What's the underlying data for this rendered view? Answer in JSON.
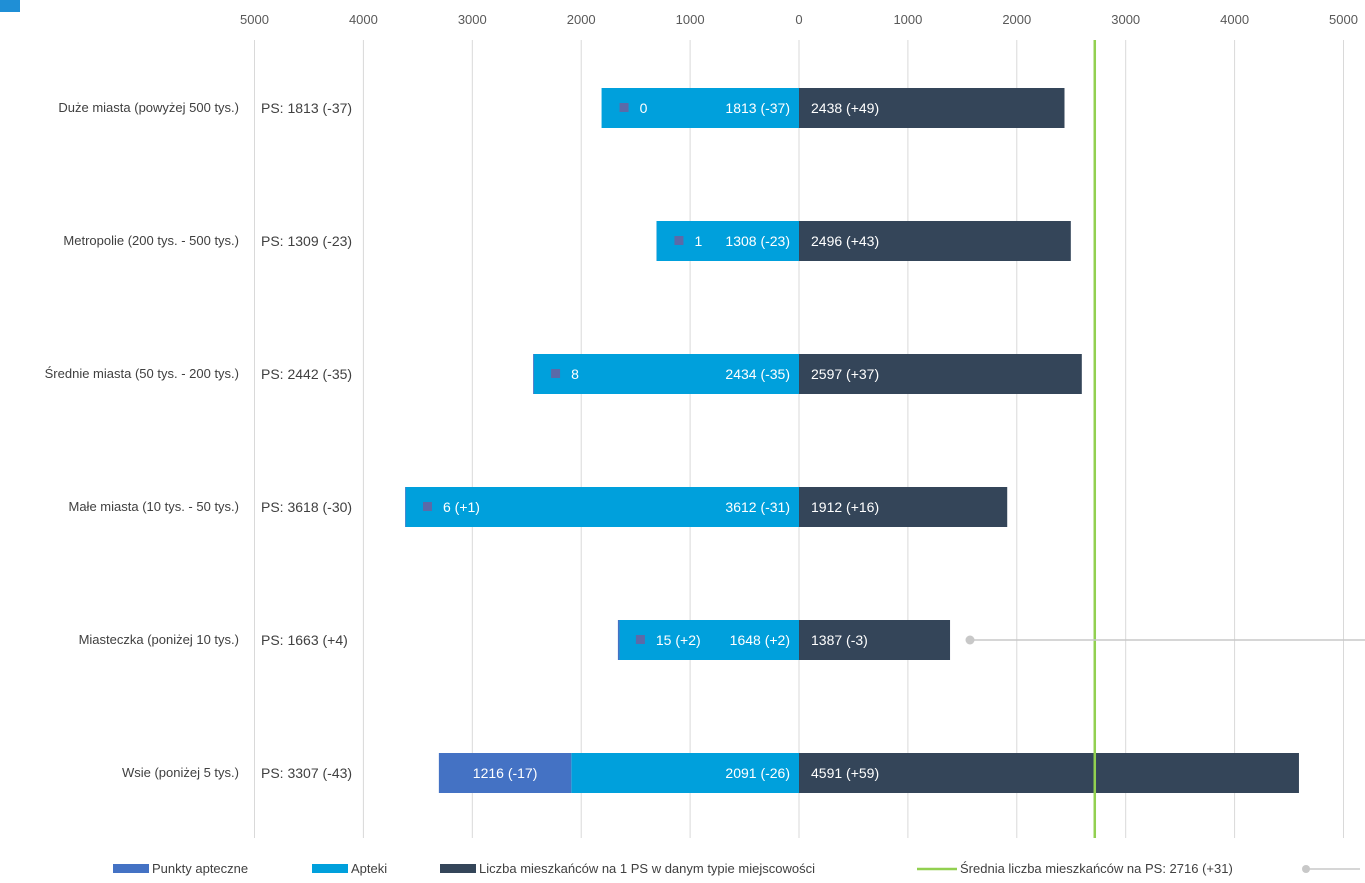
{
  "chart_data": {
    "type": "bar",
    "layout": "diverging horizontal stacked",
    "title": "",
    "x_ticks": [
      "5000",
      "4000",
      "3000",
      "2000",
      "1000",
      "0",
      "1000",
      "2000",
      "3000",
      "4000",
      "5000"
    ],
    "xlim": [
      -5000,
      5000
    ],
    "grid": true,
    "legend_position": "bottom",
    "categories": [
      "Duże miasta (powyżej 500 tys.)",
      "Metropolie (200 tys. - 500 tys.)",
      "Średnie miasta (50 tys. - 200 tys.)",
      "Małe miasta (10 tys. - 50 tys.)",
      "Miasteczka (poniżej 10 tys.)",
      "Wsie (poniżej 5 tys.)"
    ],
    "ps_labels": [
      "PS: 1813 (-37)",
      "PS: 1309 (-23)",
      "PS: 2442 (-35)",
      "PS: 3618 (-30)",
      "PS: 1663 (+4)",
      "PS: 3307 (-43)"
    ],
    "series": [
      {
        "name": "Apteki",
        "color": "#00a0dc",
        "values": [
          1813,
          1308,
          2434,
          3612,
          1648,
          2091
        ],
        "labels": [
          "1813 (-37)",
          "1308 (-23)",
          "2434 (-35)",
          "3612 (-31)",
          "1648 (+2)",
          "2091 (-26)"
        ]
      },
      {
        "name": "Punkty apteczne",
        "color": "#4472c4",
        "values": [
          0,
          1,
          8,
          6,
          15,
          1216
        ],
        "labels": [
          "0",
          "1",
          "8",
          "6 (+1)",
          "15 (+2)",
          "1216 (-17)"
        ]
      },
      {
        "name": "Liczba mieszkańców na 1 PS w danym typie miejscowości",
        "color": "#344559",
        "values": [
          2438,
          2496,
          2597,
          1912,
          1387,
          4591
        ],
        "labels": [
          "2438 (+49)",
          "2496 (+43)",
          "2597 (+37)",
          "1912 (+16)",
          "1387 (-3)",
          "4591 (+59)"
        ]
      }
    ],
    "average_line": {
      "name": "Średnia liczba mieszkańców na PS: 2716 (+31)",
      "value": 2716,
      "color": "#92d050"
    },
    "marker_color": "#5b6aa8",
    "connector_color": "#c8c8c8"
  }
}
